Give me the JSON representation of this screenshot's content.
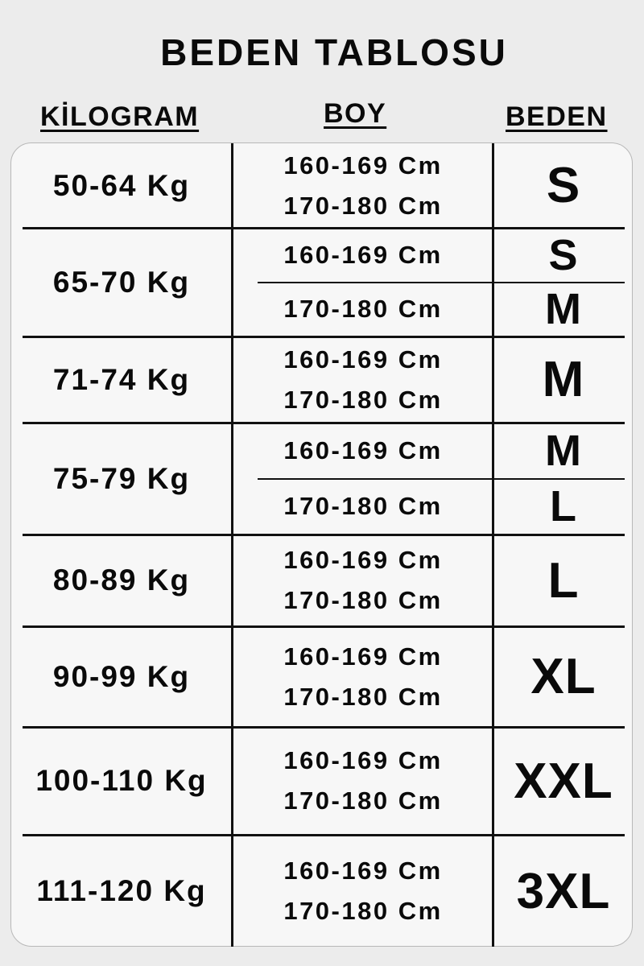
{
  "title": "BEDEN TABLOSU",
  "headers": {
    "weight": "KİLOGRAM",
    "height": "BOY",
    "size": "BEDEN"
  },
  "rows": [
    {
      "weight": "50-64 Kg",
      "heights": [
        "160-169 Cm",
        "170-180 Cm"
      ],
      "sizes": [
        "S"
      ]
    },
    {
      "weight": "65-70 Kg",
      "heights": [
        "160-169 Cm",
        "170-180 Cm"
      ],
      "sizes": [
        "S",
        "M"
      ]
    },
    {
      "weight": "71-74 Kg",
      "heights": [
        "160-169 Cm",
        "170-180 Cm"
      ],
      "sizes": [
        "M"
      ]
    },
    {
      "weight": "75-79 Kg",
      "heights": [
        "160-169 Cm",
        "170-180 Cm"
      ],
      "sizes": [
        "M",
        "L"
      ]
    },
    {
      "weight": "80-89 Kg",
      "heights": [
        "160-169 Cm",
        "170-180 Cm"
      ],
      "sizes": [
        "L"
      ]
    },
    {
      "weight": "90-99 Kg",
      "heights": [
        "160-169 Cm",
        "170-180 Cm"
      ],
      "sizes": [
        "XL"
      ]
    },
    {
      "weight": "100-110 Kg",
      "heights": [
        "160-169 Cm",
        "170-180 Cm"
      ],
      "sizes": [
        "XXL"
      ]
    },
    {
      "weight": "111-120 Kg",
      "heights": [
        "160-169 Cm",
        "170-180 Cm"
      ],
      "sizes": [
        "3XL"
      ]
    }
  ]
}
